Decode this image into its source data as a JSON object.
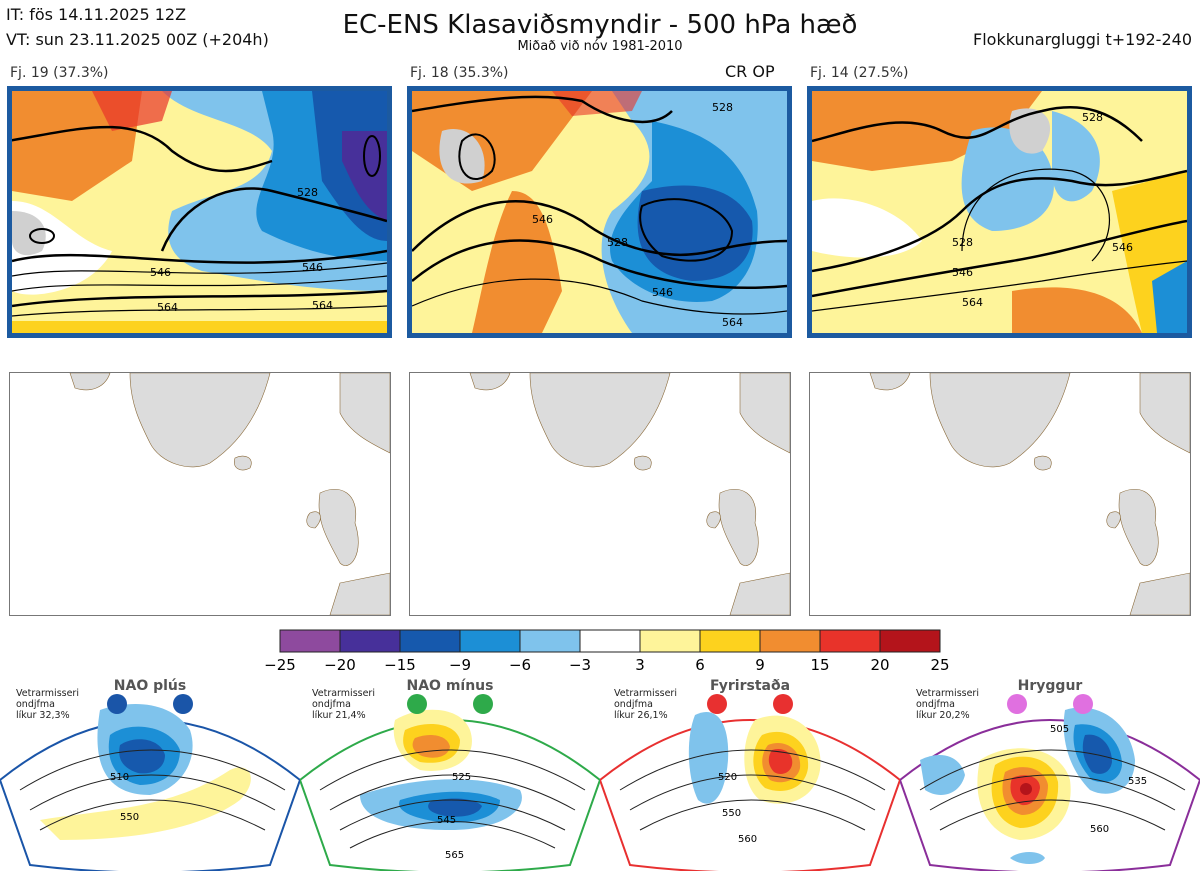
{
  "header": {
    "init_time": "IT: fös 14.11.2025 12Z",
    "valid_time": "VT: sun 23.11.2025 00Z  (+204h)",
    "title": "EC-ENS Klasaviðsmyndir - 500 hPa hæð",
    "subtitle": "Miðað við nóv 1981-2010",
    "window": "Flokkunargluggi t+192-240"
  },
  "clusters": [
    {
      "label": "Fj. 19 (37.3%)",
      "members": 19,
      "percent": 37.3,
      "tag": ""
    },
    {
      "label": "Fj. 18 (35.3%)",
      "members": 18,
      "percent": 35.3,
      "tag": "CR OP"
    },
    {
      "label": "Fj. 14 (27.5%)",
      "members": 14,
      "percent": 27.5,
      "tag": ""
    }
  ],
  "contour_labels": [
    "528",
    "546",
    "564"
  ],
  "regimes": [
    {
      "name": "NAO plús",
      "season": "Vetrarmisseri",
      "type_label": "ondjfma",
      "probability": "líkur 32,3%",
      "color": "#1a55a8",
      "contours": [
        "510",
        "550"
      ]
    },
    {
      "name": "NAO mínus",
      "season": "Vetrarmisseri",
      "type_label": "ondjfma",
      "probability": "líkur 21,4%",
      "color": "#2eaa4a",
      "contours": [
        "525",
        "545",
        "565"
      ]
    },
    {
      "name": "Fyrirstaða",
      "season": "Vetrarmisseri",
      "type_label": "ondjfma",
      "probability": "líkur 26,1%",
      "color": "#e83030",
      "contours": [
        "520",
        "550",
        "560"
      ]
    },
    {
      "name": "Hryggur",
      "season": "Vetrarmisseri",
      "type_label": "ondjfma",
      "probability": "líkur 20,2%",
      "color": "#e070e0",
      "contours": [
        "505",
        "535",
        "560"
      ]
    }
  ],
  "chart_data": {
    "type": "heatmap",
    "title": "EC-ENS Klasaviðsmyndir - 500 hPa hæð",
    "colorbar": {
      "ticks": [
        "−25",
        "−20",
        "−15",
        "−9",
        "−6",
        "−3",
        "3",
        "6",
        "9",
        "15",
        "20",
        "25"
      ],
      "colors": [
        "#8e4a9e",
        "#47309a",
        "#1659ad",
        "#1c8fd6",
        "#7fc3ec",
        "#ffffff",
        "#fef49a",
        "#fdd21e",
        "#f18d30",
        "#e8332a",
        "#b4141b"
      ]
    }
  }
}
